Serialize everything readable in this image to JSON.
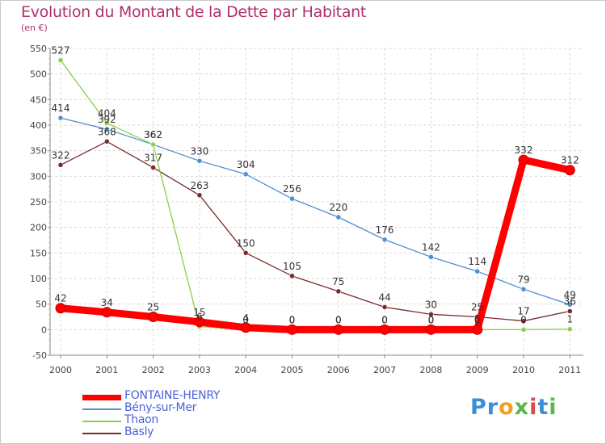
{
  "header": {
    "title": "Evolution du Montant de la Dette par Habitant",
    "subtitle": "(en €)"
  },
  "brand": {
    "parts": [
      "Pr",
      "o",
      "x",
      "i",
      "t",
      "i"
    ],
    "colors": [
      "#3a8fd8",
      "#f0a020",
      "#5ab848",
      "#e04848",
      "#3a8fd8",
      "#5ab848"
    ]
  },
  "chart_data": {
    "type": "line",
    "title": "Evolution du Montant de la Dette par Habitant",
    "subtitle": "(en €)",
    "x": [
      "2000",
      "2001",
      "2002",
      "2003",
      "2004",
      "2005",
      "2006",
      "2007",
      "2008",
      "2009",
      "2010",
      "2011"
    ],
    "ylim": [
      -50,
      550
    ],
    "yticks": [
      -50,
      0,
      50,
      100,
      150,
      200,
      250,
      300,
      350,
      400,
      450,
      500,
      550
    ],
    "grid": true,
    "legend_position": "bottom-left",
    "series": [
      {
        "name": "FONTAINE-HENRY",
        "color": "#ff0000",
        "values": [
          42,
          34,
          25,
          15,
          4,
          0,
          0,
          0,
          0,
          0,
          332,
          312
        ]
      },
      {
        "name": "Bény-sur-Mer",
        "color": "#4f8fcf",
        "values": [
          414,
          392,
          362,
          330,
          304,
          256,
          220,
          176,
          142,
          114,
          79,
          49
        ]
      },
      {
        "name": "Thaon",
        "color": "#8ad04a",
        "values": [
          527,
          404,
          362,
          6,
          0,
          0,
          0,
          0,
          0,
          0,
          0,
          1
        ]
      },
      {
        "name": "Basly",
        "color": "#7a2a2a",
        "values": [
          322,
          368,
          317,
          263,
          150,
          105,
          75,
          44,
          30,
          25,
          17,
          36
        ]
      }
    ]
  }
}
